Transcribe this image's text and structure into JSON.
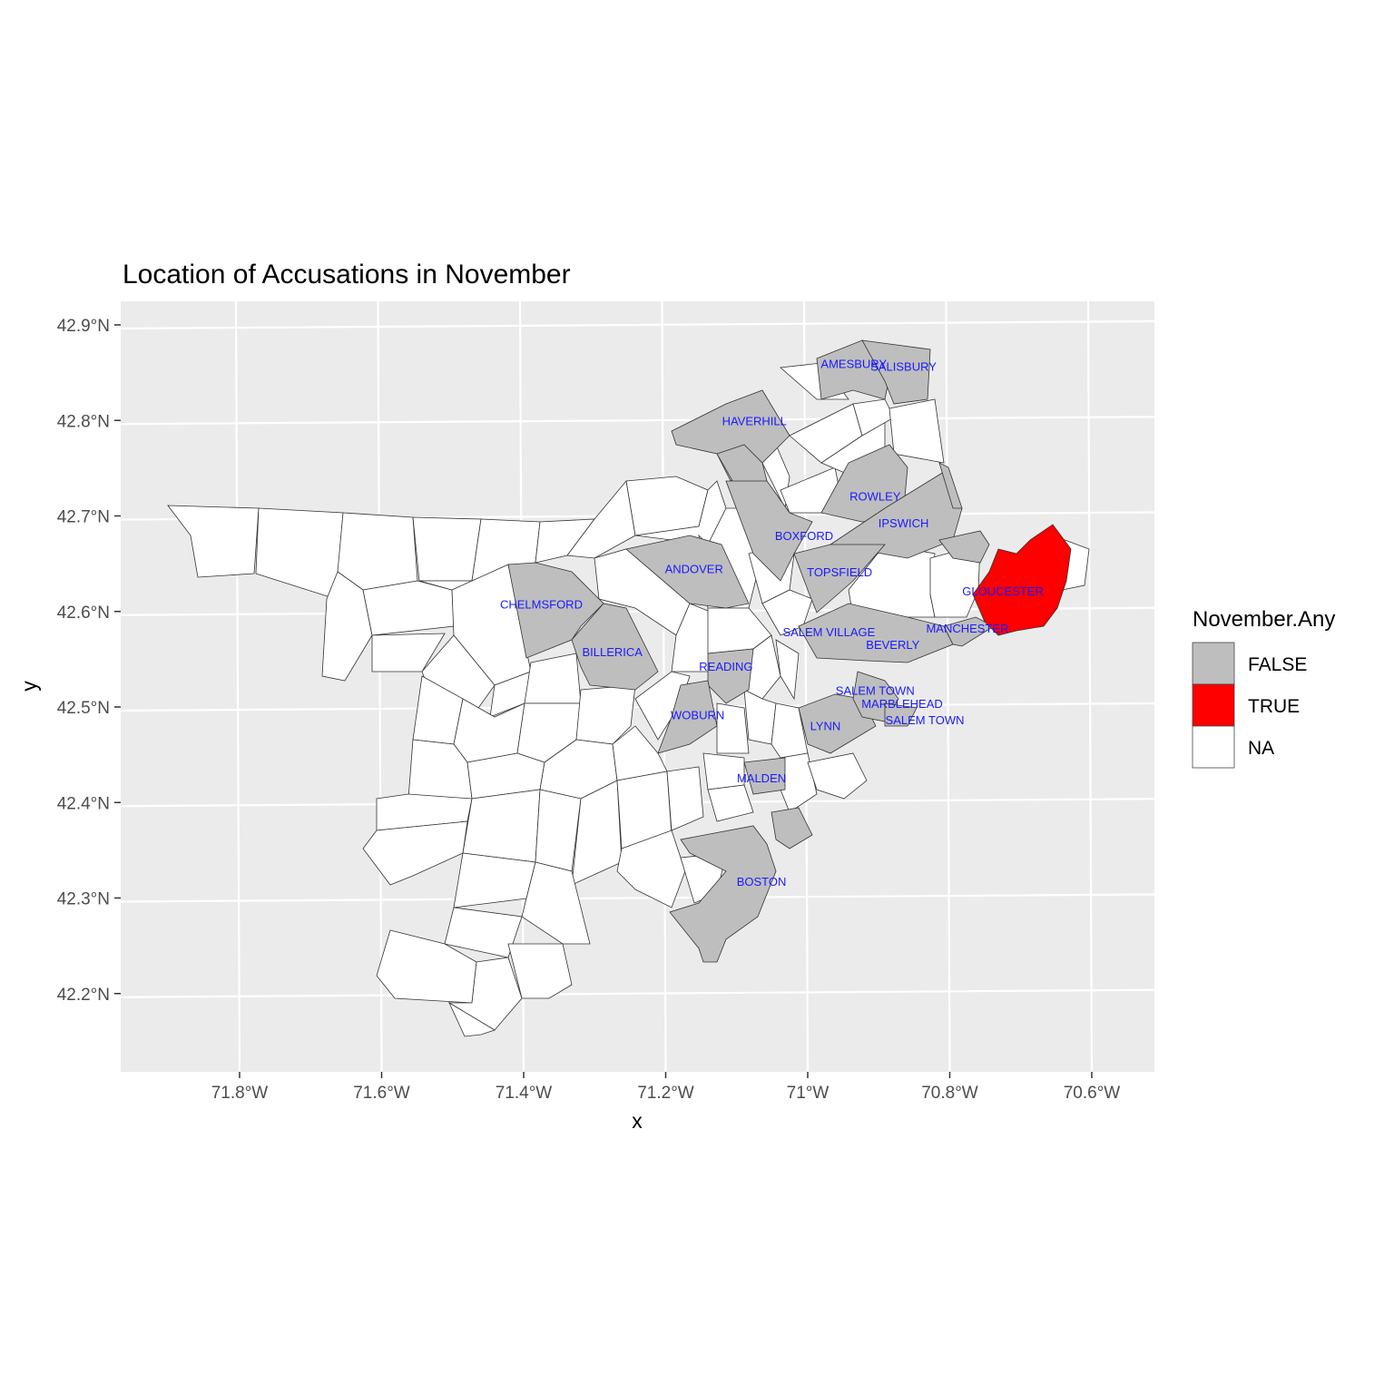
{
  "title": "Location of Accusations in November",
  "xlabel": "x",
  "ylabel": "y",
  "x_ticks": [
    "71.8°W",
    "71.6°W",
    "71.4°W",
    "71.2°W",
    "71°W",
    "70.8°W",
    "70.6°W"
  ],
  "y_ticks": [
    "42.9°N",
    "42.8°N",
    "42.7°N",
    "42.6°N",
    "42.5°N",
    "42.4°N",
    "42.3°N",
    "42.2°N"
  ],
  "legend": {
    "title": "November.Any",
    "items": [
      {
        "label": "FALSE",
        "color": "#bebebe"
      },
      {
        "label": "TRUE",
        "color": "#ff0000"
      },
      {
        "label": "NA",
        "color": "#ffffff"
      }
    ]
  },
  "colors": {
    "panel_bg": "#ebebeb",
    "grid": "#ffffff",
    "false_fill": "#bebebe",
    "true_fill": "#ff0000",
    "na_fill": "#ffffff",
    "label_color": "#1a1aff"
  },
  "chart_data": {
    "type": "map",
    "title": "Location of Accusations in November",
    "xlabel": "x",
    "ylabel": "y",
    "xlim": [
      -71.95,
      -70.53
    ],
    "ylim": [
      42.13,
      42.93
    ],
    "grid": true,
    "legend_position": "right",
    "fill_variable": "November.Any",
    "labeled_towns": [
      {
        "name": "AMESBURY",
        "lon": -70.93,
        "lat": 42.855,
        "value": "FALSE"
      },
      {
        "name": "SALISBURY",
        "lon": -70.86,
        "lat": 42.852,
        "value": "FALSE"
      },
      {
        "name": "HAVERHILL",
        "lon": -71.07,
        "lat": 42.795,
        "value": "FALSE"
      },
      {
        "name": "ROWLEY",
        "lon": -70.9,
        "lat": 42.716,
        "value": "FALSE"
      },
      {
        "name": "IPSWICH",
        "lon": -70.86,
        "lat": 42.688,
        "value": "FALSE"
      },
      {
        "name": "BOXFORD",
        "lon": -71.0,
        "lat": 42.675,
        "value": "FALSE"
      },
      {
        "name": "ANDOVER",
        "lon": -71.155,
        "lat": 42.64,
        "value": "FALSE"
      },
      {
        "name": "TOPSFIELD",
        "lon": -70.95,
        "lat": 42.637,
        "value": "FALSE"
      },
      {
        "name": "GLOUCESTER",
        "lon": -70.72,
        "lat": 42.617,
        "value": "TRUE"
      },
      {
        "name": "CHELMSFORD",
        "lon": -71.37,
        "lat": 42.603,
        "value": "FALSE"
      },
      {
        "name": "MANCHESTER",
        "lon": -70.77,
        "lat": 42.578,
        "value": "FALSE"
      },
      {
        "name": "SALEM VILLAGE",
        "lon": -70.965,
        "lat": 42.574,
        "value": "FALSE"
      },
      {
        "name": "BEVERLY",
        "lon": -70.875,
        "lat": 42.561,
        "value": "FALSE"
      },
      {
        "name": "BILLERICA",
        "lon": -71.27,
        "lat": 42.553,
        "value": "FALSE"
      },
      {
        "name": "READING",
        "lon": -71.11,
        "lat": 42.538,
        "value": "FALSE"
      },
      {
        "name": "SALEM TOWN",
        "lon": -70.9,
        "lat": 42.513,
        "value": "FALSE"
      },
      {
        "name": "MARBLEHEAD",
        "lon": -70.862,
        "lat": 42.499,
        "value": "FALSE"
      },
      {
        "name": "WOBURN",
        "lon": -71.15,
        "lat": 42.487,
        "value": "FALSE"
      },
      {
        "name": "SALEM TOWN",
        "lon": -70.83,
        "lat": 42.482,
        "value": "FALSE"
      },
      {
        "name": "LYNN",
        "lon": -70.97,
        "lat": 42.476,
        "value": "FALSE"
      },
      {
        "name": "MALDEN",
        "lon": -71.06,
        "lat": 42.421,
        "value": "FALSE"
      },
      {
        "name": "BOSTON",
        "lon": -71.06,
        "lat": 42.313,
        "value": "FALSE"
      }
    ]
  }
}
